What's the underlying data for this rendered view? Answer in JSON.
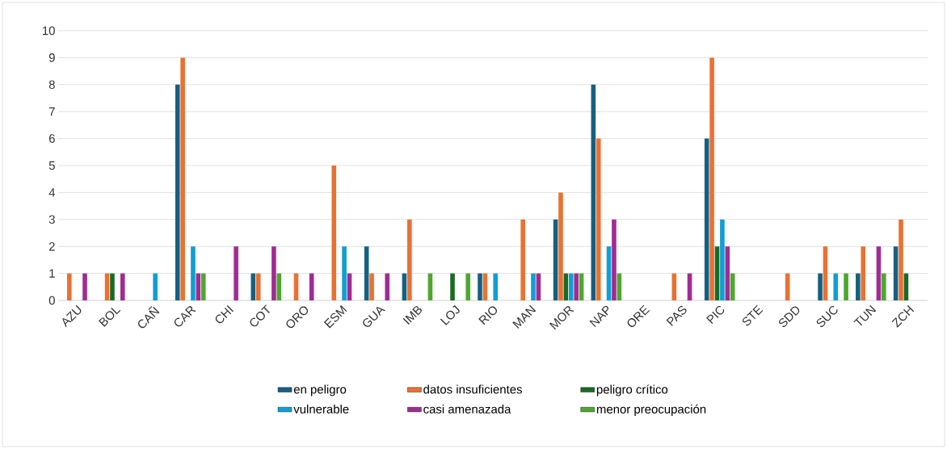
{
  "chart_data": {
    "type": "bar",
    "categories": [
      "AZU",
      "BOL",
      "CAÑ",
      "CAR",
      "CHI",
      "COT",
      "ORO",
      "ESM",
      "GUA",
      "IMB",
      "LOJ",
      "RIO",
      "MAN",
      "MOR",
      "NAP",
      "ORE",
      "PAS",
      "PIC",
      "STE",
      "SDD",
      "SUC",
      "TUN",
      "ZCH"
    ],
    "series": [
      {
        "name": "en peligro",
        "color": "#156082",
        "values": [
          0,
          0,
          0,
          8,
          0,
          1,
          0,
          0,
          2,
          1,
          0,
          1,
          0,
          3,
          8,
          0,
          0,
          6,
          0,
          0,
          1,
          1,
          2
        ]
      },
      {
        "name": "datos insuficientes",
        "color": "#e97132",
        "values": [
          1,
          1,
          0,
          9,
          0,
          1,
          1,
          5,
          1,
          3,
          0,
          1,
          3,
          4,
          6,
          0,
          1,
          9,
          0,
          1,
          2,
          2,
          3
        ]
      },
      {
        "name": "peligro crítico",
        "color": "#196b24",
        "values": [
          0,
          1,
          0,
          0,
          0,
          0,
          0,
          0,
          0,
          0,
          1,
          0,
          0,
          1,
          0,
          0,
          0,
          2,
          0,
          0,
          0,
          0,
          1
        ]
      },
      {
        "name": "vulnerable",
        "color": "#0f9ed5",
        "values": [
          0,
          0,
          1,
          2,
          0,
          0,
          0,
          2,
          0,
          0,
          0,
          1,
          1,
          1,
          2,
          0,
          0,
          3,
          0,
          0,
          1,
          0,
          0
        ]
      },
      {
        "name": "casi amenazada",
        "color": "#a02b93",
        "values": [
          1,
          1,
          0,
          1,
          2,
          2,
          1,
          1,
          1,
          0,
          0,
          0,
          1,
          1,
          3,
          0,
          1,
          2,
          0,
          0,
          0,
          2,
          0
        ]
      },
      {
        "name": "menor preocupación",
        "color": "#4ea72e",
        "values": [
          0,
          0,
          0,
          1,
          0,
          1,
          0,
          0,
          0,
          1,
          1,
          0,
          0,
          1,
          1,
          0,
          0,
          1,
          0,
          0,
          1,
          1,
          0
        ]
      }
    ],
    "ylim": [
      0,
      10
    ],
    "yticks": [
      0,
      1,
      2,
      3,
      4,
      5,
      6,
      7,
      8,
      9,
      10
    ],
    "grid": "y",
    "legend": "bottom"
  }
}
